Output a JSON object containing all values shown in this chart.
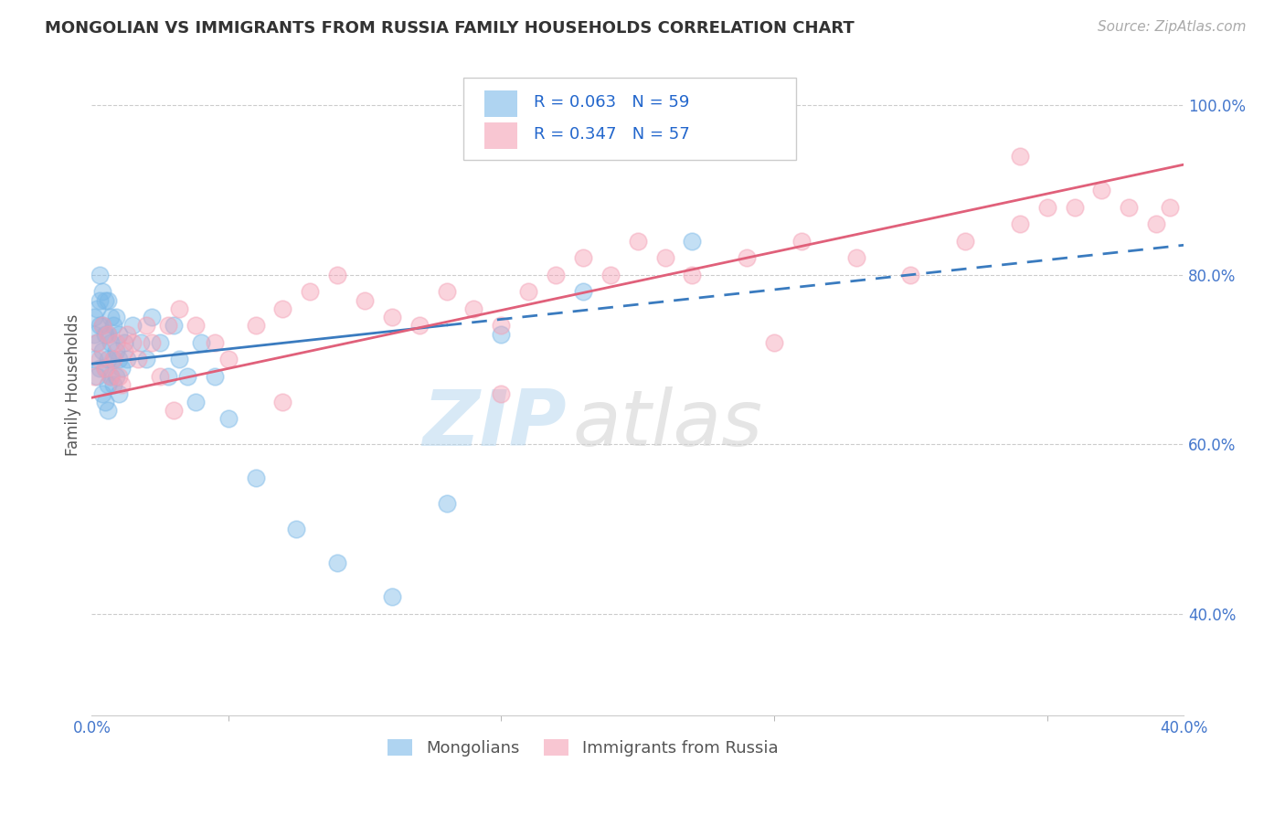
{
  "title": "MONGOLIAN VS IMMIGRANTS FROM RUSSIA FAMILY HOUSEHOLDS CORRELATION CHART",
  "source": "Source: ZipAtlas.com",
  "ylabel": "Family Households",
  "xlim": [
    0.0,
    0.4
  ],
  "ylim": [
    0.28,
    1.06
  ],
  "xticks": [
    0.0,
    0.1,
    0.2,
    0.3,
    0.4
  ],
  "xtick_labels": [
    "0.0%",
    "",
    "",
    "",
    "40.0%"
  ],
  "yticks": [
    0.4,
    0.6,
    0.8,
    1.0
  ],
  "ytick_labels": [
    "40.0%",
    "60.0%",
    "80.0%",
    "100.0%"
  ],
  "legend_R1": "R = 0.063",
  "legend_N1": "N = 59",
  "legend_R2": "R = 0.347",
  "legend_N2": "N = 57",
  "legend_label1": "Mongolians",
  "legend_label2": "Immigrants from Russia",
  "color_blue": "#7ab8e8",
  "color_pink": "#f4a0b5",
  "color_trendline_blue": "#3a7bbf",
  "color_trendline_pink": "#e0607a",
  "watermark_zip": "ZIP",
  "watermark_atlas": "atlas",
  "blue_x": [
    0.001,
    0.001,
    0.001,
    0.002,
    0.002,
    0.002,
    0.003,
    0.003,
    0.003,
    0.003,
    0.004,
    0.004,
    0.004,
    0.004,
    0.005,
    0.005,
    0.005,
    0.005,
    0.006,
    0.006,
    0.006,
    0.006,
    0.006,
    0.007,
    0.007,
    0.007,
    0.008,
    0.008,
    0.008,
    0.009,
    0.009,
    0.009,
    0.01,
    0.01,
    0.01,
    0.011,
    0.012,
    0.013,
    0.015,
    0.018,
    0.02,
    0.022,
    0.025,
    0.028,
    0.03,
    0.032,
    0.035,
    0.038,
    0.04,
    0.045,
    0.05,
    0.06,
    0.075,
    0.09,
    0.11,
    0.13,
    0.15,
    0.18,
    0.22
  ],
  "blue_y": [
    0.7,
    0.73,
    0.75,
    0.68,
    0.72,
    0.76,
    0.69,
    0.74,
    0.77,
    0.8,
    0.66,
    0.71,
    0.74,
    0.78,
    0.65,
    0.69,
    0.73,
    0.77,
    0.64,
    0.67,
    0.7,
    0.73,
    0.77,
    0.68,
    0.72,
    0.75,
    0.67,
    0.7,
    0.74,
    0.68,
    0.71,
    0.75,
    0.66,
    0.7,
    0.73,
    0.69,
    0.72,
    0.7,
    0.74,
    0.72,
    0.7,
    0.75,
    0.72,
    0.68,
    0.74,
    0.7,
    0.68,
    0.65,
    0.72,
    0.68,
    0.63,
    0.56,
    0.5,
    0.46,
    0.42,
    0.53,
    0.73,
    0.78,
    0.84
  ],
  "pink_x": [
    0.001,
    0.002,
    0.003,
    0.004,
    0.005,
    0.006,
    0.007,
    0.008,
    0.009,
    0.01,
    0.011,
    0.012,
    0.013,
    0.015,
    0.017,
    0.02,
    0.022,
    0.025,
    0.028,
    0.032,
    0.038,
    0.045,
    0.05,
    0.06,
    0.07,
    0.08,
    0.09,
    0.1,
    0.11,
    0.12,
    0.13,
    0.14,
    0.15,
    0.16,
    0.17,
    0.18,
    0.19,
    0.2,
    0.21,
    0.22,
    0.24,
    0.26,
    0.28,
    0.3,
    0.32,
    0.34,
    0.35,
    0.36,
    0.37,
    0.38,
    0.39,
    0.395,
    0.03,
    0.07,
    0.15,
    0.25,
    0.34
  ],
  "pink_y": [
    0.68,
    0.72,
    0.7,
    0.74,
    0.69,
    0.73,
    0.68,
    0.7,
    0.72,
    0.68,
    0.67,
    0.71,
    0.73,
    0.72,
    0.7,
    0.74,
    0.72,
    0.68,
    0.74,
    0.76,
    0.74,
    0.72,
    0.7,
    0.74,
    0.76,
    0.78,
    0.8,
    0.77,
    0.75,
    0.74,
    0.78,
    0.76,
    0.74,
    0.78,
    0.8,
    0.82,
    0.8,
    0.84,
    0.82,
    0.8,
    0.82,
    0.84,
    0.82,
    0.8,
    0.84,
    0.86,
    0.88,
    0.88,
    0.9,
    0.88,
    0.86,
    0.88,
    0.64,
    0.65,
    0.66,
    0.72,
    0.94
  ],
  "blue_trend_x0": 0.0,
  "blue_trend_x1": 0.4,
  "blue_trend_y0": 0.695,
  "blue_trend_y1": 0.835,
  "pink_trend_x0": 0.0,
  "pink_trend_x1": 0.4,
  "pink_trend_y0": 0.655,
  "pink_trend_y1": 0.93
}
